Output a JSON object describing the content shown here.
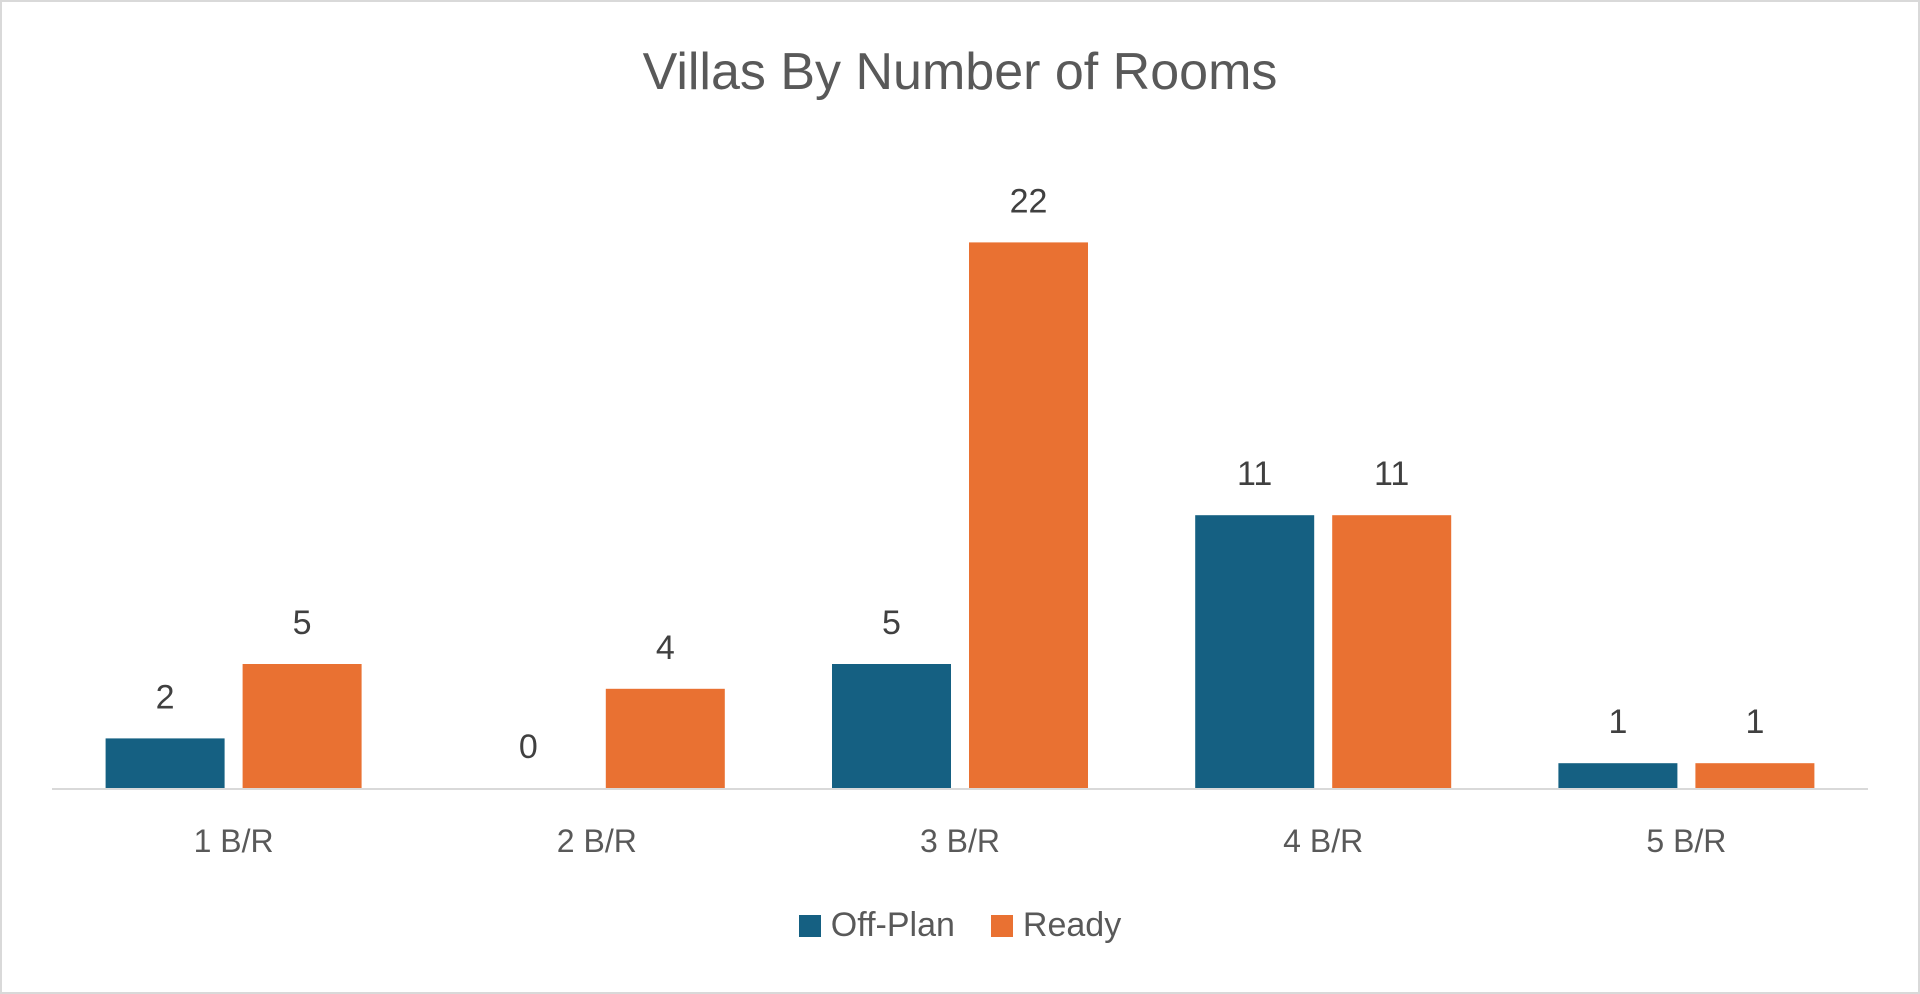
{
  "chart_data": {
    "type": "bar",
    "title": "Villas By Number of Rooms",
    "categories": [
      "1 B/R",
      "2 B/R",
      "3 B/R",
      "4 B/R",
      "5 B/R"
    ],
    "series": [
      {
        "name": "Off-Plan",
        "color": "#156082",
        "values": [
          2,
          0,
          5,
          11,
          1
        ]
      },
      {
        "name": "Ready",
        "color": "#E97132",
        "values": [
          5,
          4,
          22,
          11,
          1
        ]
      }
    ],
    "ylim": [
      0,
      24
    ],
    "grid": false,
    "legend": "bottom",
    "data_labels": true
  }
}
